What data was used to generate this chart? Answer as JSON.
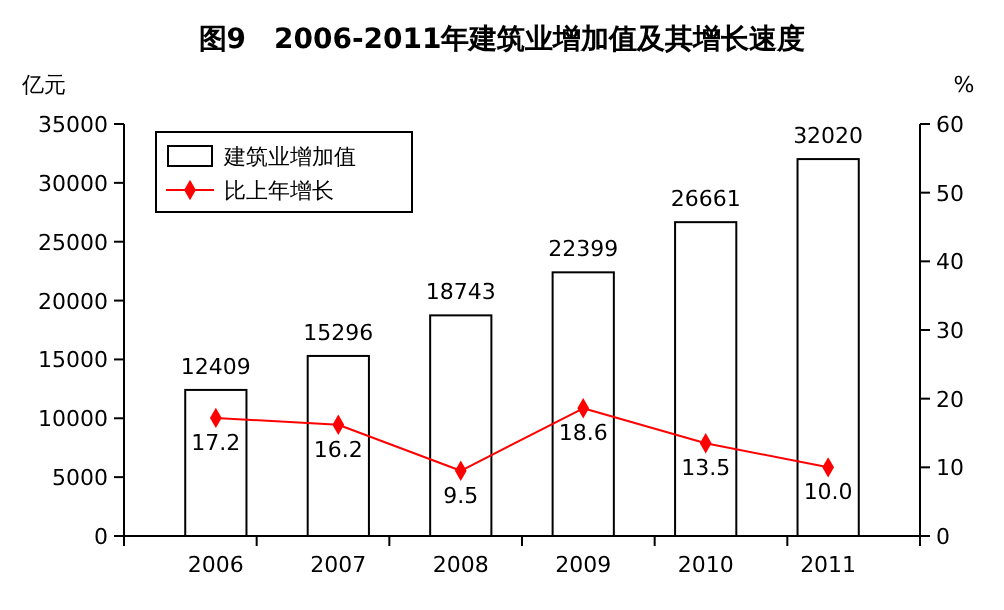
{
  "chart_data": {
    "type": "bar",
    "title": "图9　2006-2011年建筑业增加值及其增长速度",
    "ylabel": "亿元",
    "y2label": "%",
    "categories": [
      "2006",
      "2007",
      "2008",
      "2009",
      "2010",
      "2011"
    ],
    "series": [
      {
        "name": "建筑业增加值",
        "color": "#ffffff",
        "values": [
          12409,
          15296,
          18743,
          22399,
          26661,
          32020
        ]
      },
      {
        "name": "比上年增长",
        "type": "line",
        "axis": "y2",
        "color": "#ff0000",
        "marker": "diamond",
        "values": [
          17.2,
          16.2,
          9.5,
          18.6,
          13.5,
          10.0
        ],
        "value_labels": [
          "17.2",
          "16.2",
          "9.5",
          "18.6",
          "13.5",
          "10.0"
        ]
      }
    ],
    "data_labels": true,
    "ylim": [
      0,
      35000
    ],
    "yticks": [
      0,
      5000,
      10000,
      15000,
      20000,
      25000,
      30000,
      35000
    ],
    "y2lim": [
      0,
      60
    ],
    "y2ticks": [
      0,
      10,
      20,
      30,
      40,
      50,
      60
    ],
    "legend": "top left",
    "grid": false
  }
}
